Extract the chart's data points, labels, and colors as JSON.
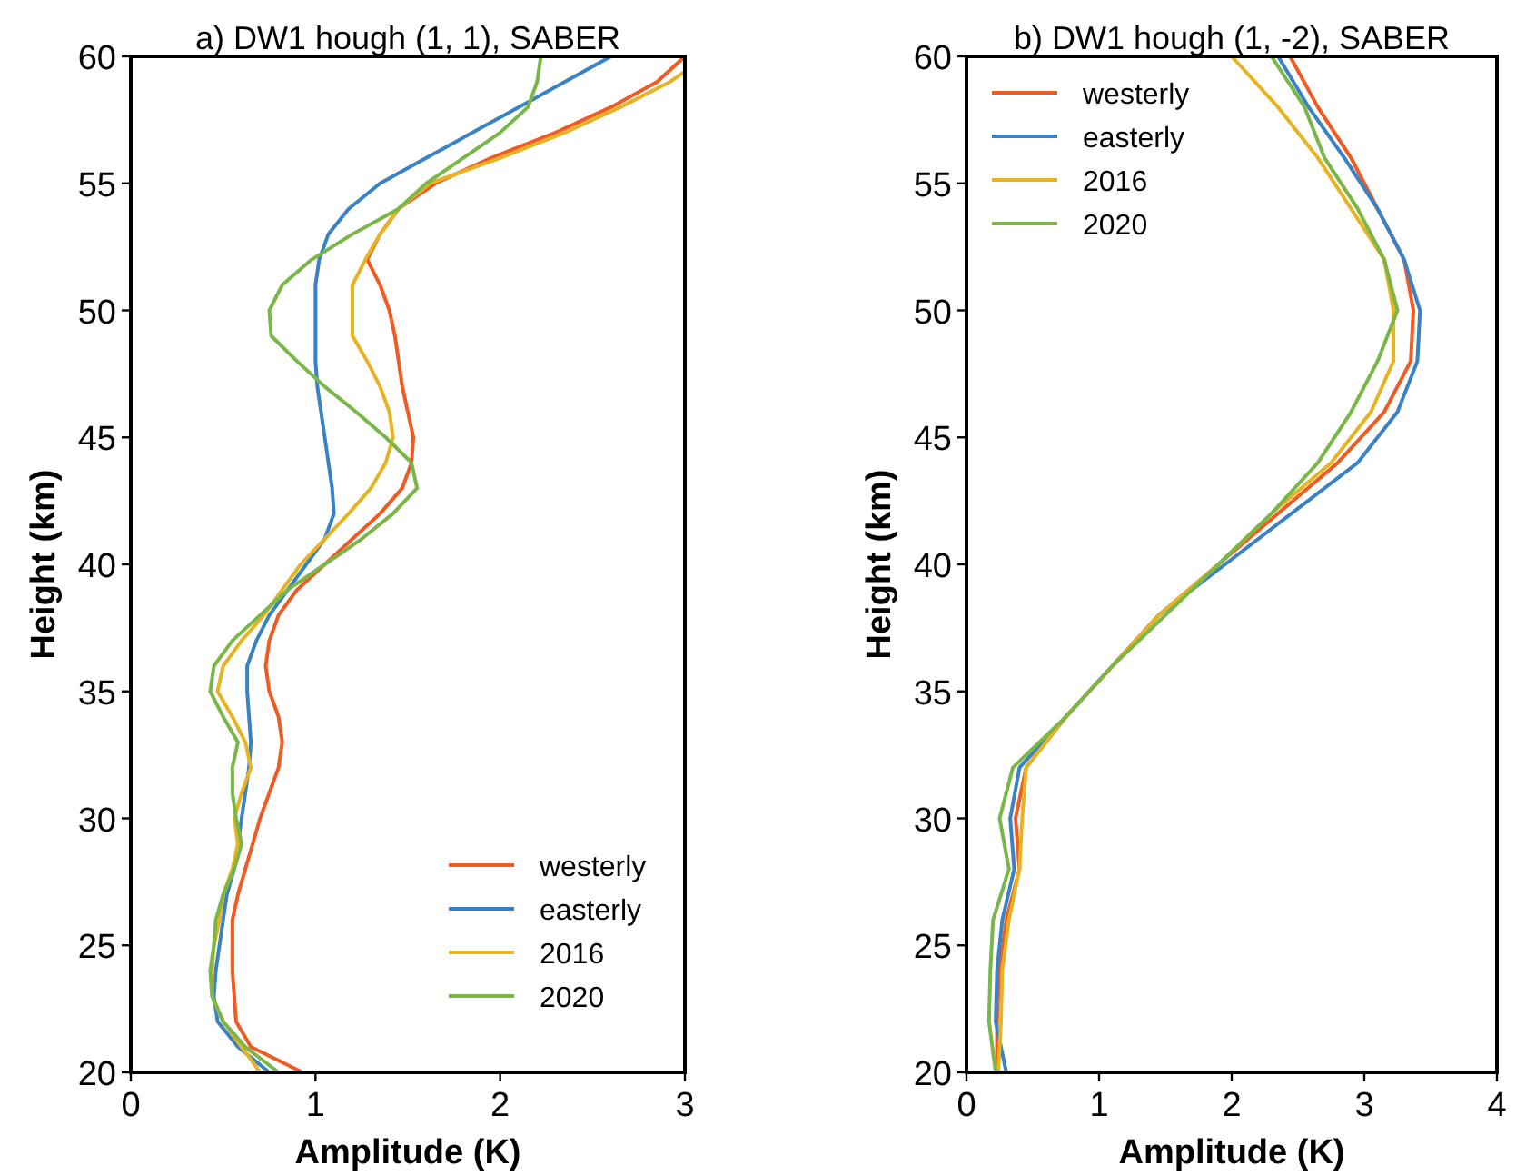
{
  "chart_data": [
    {
      "type": "line",
      "title": "a) DW1 hough (1, 1), SABER",
      "xlabel": "Amplitude (K)",
      "ylabel": "Height (km)",
      "xlim": [
        0,
        3
      ],
      "xticks": [
        0,
        1,
        2,
        3
      ],
      "ylim": [
        20,
        60
      ],
      "yticks": [
        20,
        25,
        30,
        35,
        40,
        45,
        50,
        55,
        60
      ],
      "grid": false,
      "legend": "bottom right",
      "marker": "none",
      "line_style": "solid",
      "series": [
        {
          "name": "westerly",
          "color": "#f05a23",
          "values": [
            60,
            59,
            58,
            57,
            56,
            55,
            54,
            53,
            52,
            51,
            50,
            49,
            48,
            47,
            46,
            45,
            44,
            43,
            42,
            41,
            40,
            39,
            38,
            37,
            36,
            35,
            34,
            33,
            32,
            31,
            30,
            29,
            28,
            27,
            26,
            25,
            24,
            23,
            22,
            21,
            20
          ],
          "x": [
            3.0,
            2.85,
            2.6,
            2.3,
            1.95,
            1.65,
            1.45,
            1.35,
            1.28,
            1.35,
            1.4,
            1.43,
            1.45,
            1.47,
            1.5,
            1.53,
            1.52,
            1.47,
            1.35,
            1.2,
            1.05,
            0.9,
            0.8,
            0.75,
            0.73,
            0.75,
            0.8,
            0.82,
            0.8,
            0.75,
            0.7,
            0.66,
            0.62,
            0.58,
            0.55,
            0.55,
            0.55,
            0.56,
            0.57,
            0.65,
            0.93
          ]
        },
        {
          "name": "easterly",
          "color": "#3a82c4",
          "values": [
            60,
            59,
            58,
            57,
            56,
            55,
            54,
            53,
            52,
            51,
            50,
            49,
            48,
            47,
            46,
            45,
            44,
            43,
            42,
            41,
            40,
            39,
            38,
            37,
            36,
            35,
            34,
            33,
            32,
            31,
            30,
            29,
            28,
            27,
            26,
            25,
            24,
            23,
            22,
            21,
            20
          ],
          "x": [
            2.6,
            2.35,
            2.1,
            1.85,
            1.6,
            1.35,
            1.18,
            1.07,
            1.02,
            1.0,
            1.0,
            1.0,
            1.0,
            1.01,
            1.03,
            1.05,
            1.07,
            1.09,
            1.1,
            1.05,
            0.95,
            0.85,
            0.75,
            0.68,
            0.63,
            0.63,
            0.64,
            0.65,
            0.64,
            0.62,
            0.6,
            0.58,
            0.56,
            0.52,
            0.5,
            0.48,
            0.46,
            0.45,
            0.47,
            0.58,
            0.75
          ]
        },
        {
          "name": "2016",
          "color": "#e6b422",
          "values": [
            59.4,
            59,
            58,
            57,
            56,
            55,
            54,
            53,
            52,
            51,
            50,
            49,
            48,
            47,
            46,
            45,
            44,
            43,
            42,
            41,
            40,
            39,
            38,
            37,
            36,
            35,
            34,
            33,
            32,
            31,
            30,
            29,
            28,
            27,
            26,
            25,
            24,
            23,
            22,
            21,
            20
          ],
          "x": [
            3.0,
            2.92,
            2.65,
            2.35,
            2.0,
            1.62,
            1.45,
            1.35,
            1.27,
            1.2,
            1.2,
            1.2,
            1.28,
            1.35,
            1.4,
            1.42,
            1.38,
            1.3,
            1.18,
            1.05,
            0.92,
            0.82,
            0.72,
            0.6,
            0.5,
            0.47,
            0.55,
            0.62,
            0.65,
            0.6,
            0.56,
            0.58,
            0.55,
            0.5,
            0.48,
            0.45,
            0.44,
            0.44,
            0.5,
            0.6,
            0.7
          ]
        },
        {
          "name": "2020",
          "color": "#7ab648",
          "values": [
            60,
            59,
            58,
            57,
            56,
            55,
            54,
            53,
            52,
            51,
            50,
            49,
            48,
            47,
            46,
            45,
            44,
            43,
            42,
            41,
            40,
            39,
            38,
            37,
            36,
            35,
            34,
            33,
            32,
            31,
            30,
            29,
            28,
            27,
            26,
            25,
            24,
            23,
            22,
            21,
            20
          ],
          "x": [
            2.22,
            2.2,
            2.15,
            2.0,
            1.8,
            1.6,
            1.45,
            1.2,
            0.98,
            0.82,
            0.75,
            0.76,
            0.9,
            1.05,
            1.22,
            1.38,
            1.52,
            1.55,
            1.42,
            1.25,
            1.05,
            0.85,
            0.7,
            0.55,
            0.45,
            0.43,
            0.5,
            0.58,
            0.55,
            0.55,
            0.57,
            0.6,
            0.56,
            0.5,
            0.46,
            0.45,
            0.43,
            0.44,
            0.5,
            0.62,
            0.8
          ]
        }
      ]
    },
    {
      "type": "line",
      "title": "b) DW1 hough (1, -2), SABER",
      "xlabel": "Amplitude (K)",
      "ylabel": "Height (km)",
      "xlim": [
        0,
        4
      ],
      "xticks": [
        0,
        1,
        2,
        3,
        4
      ],
      "ylim": [
        20,
        60
      ],
      "yticks": [
        20,
        25,
        30,
        35,
        40,
        45,
        50,
        55,
        60
      ],
      "grid": false,
      "legend": "top left",
      "marker": "none",
      "line_style": "solid",
      "series": [
        {
          "name": "westerly",
          "color": "#f05a23",
          "values": [
            60,
            58,
            56,
            54,
            52,
            50,
            48,
            46,
            44,
            42,
            40,
            38,
            36,
            34,
            32,
            30,
            28,
            26,
            24,
            22,
            20
          ],
          "x": [
            2.44,
            2.65,
            2.9,
            3.1,
            3.3,
            3.37,
            3.35,
            3.15,
            2.8,
            2.35,
            1.9,
            1.45,
            1.1,
            0.75,
            0.45,
            0.37,
            0.4,
            0.3,
            0.25,
            0.23,
            0.23
          ]
        },
        {
          "name": "easterly",
          "color": "#3a82c4",
          "values": [
            60,
            58,
            56,
            54,
            52,
            50,
            48,
            46,
            44,
            42,
            40,
            38,
            36,
            34,
            32,
            30,
            28,
            26,
            24,
            22,
            20
          ],
          "x": [
            2.35,
            2.58,
            2.85,
            3.1,
            3.3,
            3.42,
            3.4,
            3.25,
            2.95,
            2.45,
            1.95,
            1.45,
            1.1,
            0.75,
            0.4,
            0.33,
            0.36,
            0.27,
            0.23,
            0.22,
            0.3
          ]
        },
        {
          "name": "2016",
          "color": "#e6b422",
          "values": [
            60,
            58,
            56,
            54,
            52,
            50,
            48,
            46,
            44,
            42,
            40,
            38,
            36,
            34,
            32,
            30,
            28,
            26,
            24,
            22,
            20
          ],
          "x": [
            2.0,
            2.35,
            2.65,
            2.9,
            3.15,
            3.22,
            3.22,
            3.05,
            2.75,
            2.3,
            1.9,
            1.45,
            1.1,
            0.75,
            0.45,
            0.42,
            0.4,
            0.32,
            0.27,
            0.26,
            0.24
          ]
        },
        {
          "name": "2020",
          "color": "#7ab648",
          "values": [
            60,
            58,
            56,
            54,
            52,
            50,
            48,
            46,
            44,
            42,
            40,
            38,
            36,
            34,
            32,
            30,
            28,
            26,
            24,
            22,
            20
          ],
          "x": [
            2.3,
            2.55,
            2.7,
            2.95,
            3.15,
            3.25,
            3.1,
            2.9,
            2.65,
            2.3,
            1.9,
            1.5,
            1.1,
            0.75,
            0.35,
            0.25,
            0.32,
            0.2,
            0.18,
            0.17,
            0.22
          ]
        }
      ]
    }
  ]
}
